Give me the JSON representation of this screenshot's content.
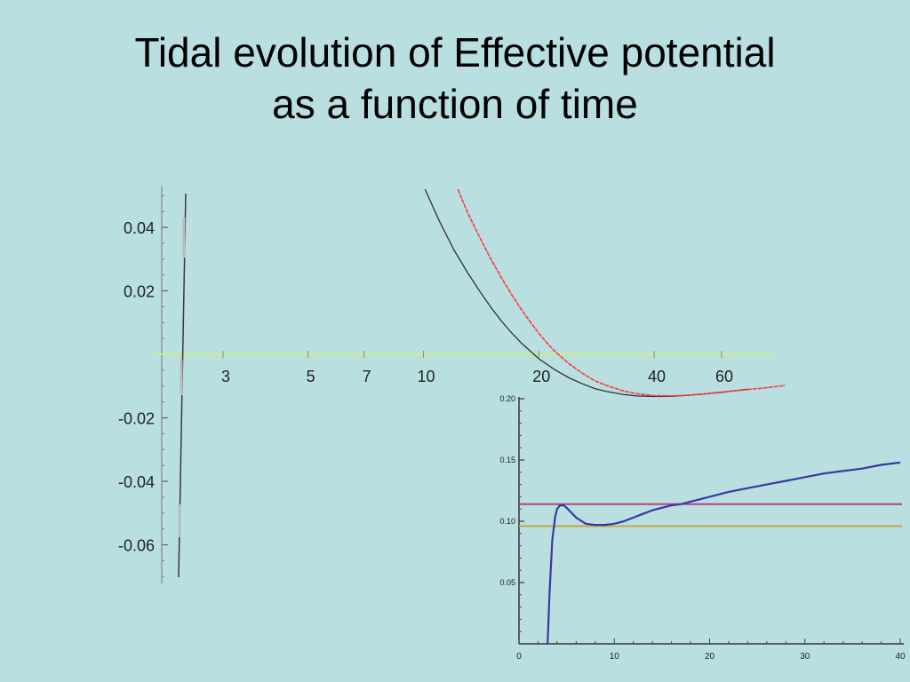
{
  "slide": {
    "title_line1": "Tidal evolution of Effective potential",
    "title_line2": "as a function of time"
  },
  "colors": {
    "background": "#b9dfe1",
    "zero_line": "#c9f07a",
    "black_curve": "#333333",
    "red_curve": "#ff3a3a",
    "inset_blue": "#3a39a0",
    "inset_magenta": "#b4387c",
    "inset_orange": "#c8a02e"
  },
  "chart_data": [
    {
      "type": "line",
      "x_scale": "log",
      "x_ticks": [
        3,
        5,
        7,
        10,
        20,
        40,
        60
      ],
      "x_tick_labels": [
        "3",
        "5",
        "7",
        "10",
        "20",
        "40",
        "60"
      ],
      "y_ticks": [
        0.04,
        0.02,
        -0.02,
        -0.04,
        -0.06
      ],
      "y_tick_labels": [
        "0.04",
        "0.02",
        "-0.02",
        "-0.04",
        "-0.06"
      ],
      "ylim": [
        -0.07,
        0.053
      ],
      "xlim": [
        1.4,
        95
      ],
      "series": [
        {
          "color_key": "black_curve",
          "x": [
            10.1,
            11,
            12,
            13,
            14,
            15,
            16,
            17,
            18,
            19,
            20,
            22,
            24,
            26,
            28,
            30,
            33,
            36,
            40,
            45,
            50,
            55,
            60,
            70
          ],
          "y": [
            0.052,
            0.042,
            0.033,
            0.026,
            0.02,
            0.0148,
            0.0104,
            0.0067,
            0.0036,
            0.001,
            -0.0014,
            -0.0048,
            -0.0074,
            -0.0093,
            -0.0108,
            -0.0117,
            -0.0126,
            -0.0131,
            -0.0133,
            -0.0132,
            -0.0128,
            -0.0124,
            -0.012,
            -0.011
          ]
        },
        {
          "color_key": "red_curve",
          "x": [
            12.3,
            13,
            14,
            15,
            16,
            17,
            18,
            19,
            20,
            21,
            22,
            24,
            26,
            28,
            30,
            33,
            36,
            40,
            45,
            50,
            55,
            60,
            70,
            80,
            88
          ],
          "y": [
            0.052,
            0.045,
            0.037,
            0.03,
            0.024,
            0.0188,
            0.0142,
            0.0102,
            0.0066,
            0.0036,
            0.001,
            -0.003,
            -0.006,
            -0.0083,
            -0.0098,
            -0.0114,
            -0.0124,
            -0.013,
            -0.0131,
            -0.0128,
            -0.0124,
            -0.0119,
            -0.0111,
            -0.0104,
            -0.0098
          ]
        }
      ]
    },
    {
      "type": "line",
      "x_ticks": [
        0,
        10,
        20,
        30,
        40
      ],
      "x_tick_labels": [
        "0",
        "10",
        "20",
        "30",
        "40"
      ],
      "y_ticks": [
        0.2,
        0.15,
        0.1,
        0.05
      ],
      "y_tick_labels": [
        "0.20",
        "0.15",
        "0.10",
        "0.05"
      ],
      "xlim": [
        0,
        40
      ],
      "ylim": [
        0,
        0.2
      ],
      "hlines": [
        {
          "y": 0.114,
          "color_key": "inset_magenta"
        },
        {
          "y": 0.096,
          "color_key": "inset_orange"
        }
      ],
      "series": [
        {
          "color_key": "inset_blue",
          "x": [
            3.0,
            3.2,
            3.5,
            3.8,
            4.0,
            4.3,
            4.7,
            5.0,
            5.5,
            6.0,
            7.0,
            8.0,
            9.0,
            10.0,
            11.0,
            12.0,
            13.0,
            14.0,
            15.0,
            16.0,
            17.0,
            18.0,
            19.0,
            20.0,
            22.0,
            24.0,
            26.0,
            28.0,
            30.0,
            32.0,
            34.0,
            36.0,
            38.0,
            40.0
          ],
          "y": [
            0.0,
            0.04,
            0.085,
            0.104,
            0.11,
            0.113,
            0.113,
            0.111,
            0.107,
            0.103,
            0.098,
            0.097,
            0.097,
            0.098,
            0.1,
            0.103,
            0.106,
            0.109,
            0.111,
            0.113,
            0.114,
            0.116,
            0.118,
            0.12,
            0.124,
            0.127,
            0.13,
            0.133,
            0.136,
            0.139,
            0.141,
            0.143,
            0.146,
            0.148
          ]
        }
      ]
    }
  ]
}
